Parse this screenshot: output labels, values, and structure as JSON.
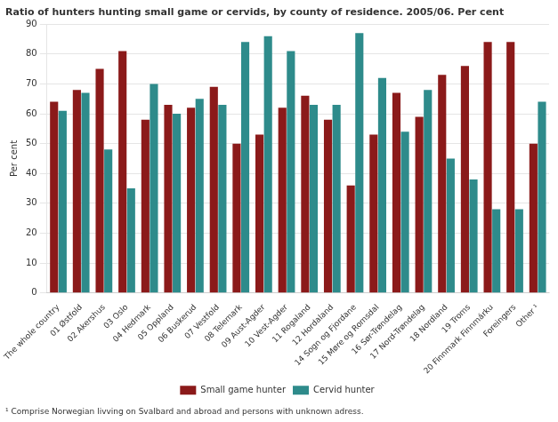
{
  "chart_data": {
    "type": "bar",
    "title": "Ratio of hunters hunting small game or cervids, by county of residence. 2005/06. Per cent",
    "ylabel": "Per cent",
    "footnote": "¹ Comprise Norwegian livving on Svalbard and abroad and persons with unknown adress.",
    "categories": [
      "The whole country",
      "01 Østfold",
      "02 Akershus",
      "03 Oslo",
      "04 Hedmark",
      "05 Oppland",
      "06 Buskerud",
      "07 Vestfold",
      "08 Telemark",
      "09 Aust-Agder",
      "10 Vest-Agder",
      "11 Rogaland",
      "12 Hordaland",
      "14 Sogn og Fjordane",
      "15 Møre og Romsdal",
      "16 Sør-Trøndelag",
      "17 Nord-Trøndelag",
      "18 Nordland",
      "19 Troms",
      "20 Finnmark Finnmárku",
      "Foreingers",
      "Other ¹"
    ],
    "series": [
      {
        "name": "Small game hunter",
        "color": "#8B1A1A",
        "values": [
          64,
          68,
          75,
          81,
          58,
          63,
          62,
          69,
          50,
          53,
          62,
          66,
          58,
          36,
          53,
          67,
          59,
          73,
          76,
          84,
          84,
          50
        ]
      },
      {
        "name": "Cervid hunter",
        "color": "#2E8B8B",
        "values": [
          61,
          67,
          48,
          35,
          70,
          60,
          65,
          63,
          84,
          86,
          81,
          63,
          63,
          87,
          72,
          54,
          68,
          45,
          38,
          28,
          28,
          64
        ]
      }
    ],
    "ylim": [
      0,
      90
    ],
    "yticks": [
      0,
      10,
      20,
      30,
      40,
      50,
      60,
      70,
      80,
      90
    ],
    "grid": true,
    "legend": "bottom"
  }
}
